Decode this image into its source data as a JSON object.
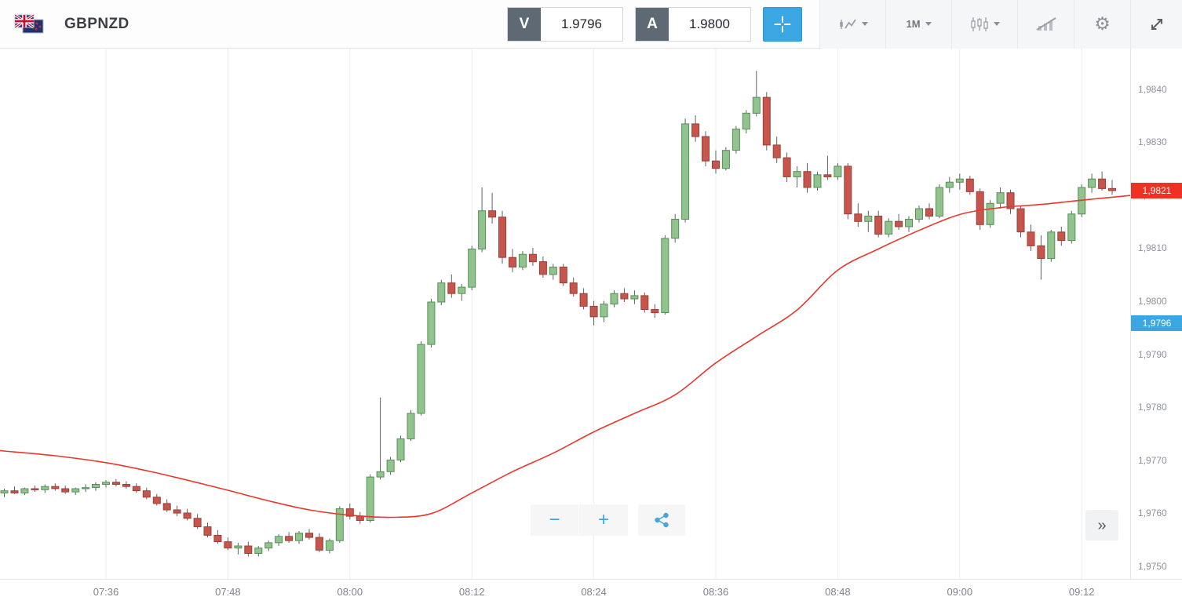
{
  "toolbar": {
    "symbol": "GBPNZD",
    "sell": {
      "label": "V",
      "value": "1.9796"
    },
    "buy": {
      "label": "A",
      "value": "1.9800"
    },
    "timeframe": "1M"
  },
  "icons": {
    "gear": "⚙",
    "scroll_right": "»",
    "zoom_in": "+",
    "zoom_out": "−"
  },
  "axis": {
    "last_price_label": "1,9821",
    "bid_price_label": "1,9796",
    "price_ticks": [
      {
        "v": 1.984,
        "label": "1,9840"
      },
      {
        "v": 1.983,
        "label": "1,9830"
      },
      {
        "v": 1.982,
        "label": "1,9820"
      },
      {
        "v": 1.981,
        "label": "1,9810"
      },
      {
        "v": 1.98,
        "label": "1,9800"
      },
      {
        "v": 1.979,
        "label": "1,9790"
      },
      {
        "v": 1.978,
        "label": "1,9780"
      },
      {
        "v": 1.977,
        "label": "1,9770"
      },
      {
        "v": 1.976,
        "label": "1,9760"
      },
      {
        "v": 1.975,
        "label": "1,9750"
      }
    ],
    "time_labels": [
      {
        "label": "07:36",
        "t": 10
      },
      {
        "label": "07:48",
        "t": 22
      },
      {
        "label": "08:00",
        "t": 34
      },
      {
        "label": "08:12",
        "t": 46
      },
      {
        "label": "08:24",
        "t": 58
      },
      {
        "label": "08:36",
        "t": 70
      },
      {
        "label": "08:48",
        "t": 82
      },
      {
        "label": "09:00",
        "t": 94
      },
      {
        "label": "09:12",
        "t": 106
      }
    ]
  },
  "colors": {
    "accent_blue": "#3aa7e3",
    "up_fill": "#92c28e",
    "up_stroke": "#559055",
    "down_fill": "#c4564e",
    "down_stroke": "#a03d35",
    "wick": "#5c6066",
    "ma_line": "#e8372c",
    "gridline": "#ebedee",
    "last_price_badge": "#ee3124",
    "bid_badge": "#3aa7e3"
  },
  "chart_data": {
    "type": "candlestick",
    "title": "GBPNZD 1M",
    "symbol": "GBPNZD",
    "timeframe": "1M",
    "start_time": "07:26",
    "interval_minutes": 1,
    "ylim": [
      1.975,
      1.9845
    ],
    "last_price": 1.9821,
    "bid": 1.9796,
    "ask": 1.98,
    "candles": [
      [
        1.9764,
        1.97648,
        1.97632,
        1.97644
      ],
      [
        1.97644,
        1.97652,
        1.97638,
        1.9764
      ],
      [
        1.9764,
        1.9765,
        1.97636,
        1.97648
      ],
      [
        1.97648,
        1.97654,
        1.97642,
        1.97646
      ],
      [
        1.97646,
        1.97656,
        1.9764,
        1.97652
      ],
      [
        1.97652,
        1.97658,
        1.97644,
        1.97648
      ],
      [
        1.97648,
        1.97654,
        1.97638,
        1.97642
      ],
      [
        1.97642,
        1.9765,
        1.97636,
        1.97648
      ],
      [
        1.97648,
        1.97656,
        1.97642,
        1.9765
      ],
      [
        1.9765,
        1.9766,
        1.97644,
        1.97656
      ],
      [
        1.97656,
        1.97664,
        1.9765,
        1.9766
      ],
      [
        1.9766,
        1.97666,
        1.97652,
        1.97656
      ],
      [
        1.97656,
        1.97662,
        1.97648,
        1.97652
      ],
      [
        1.97652,
        1.97658,
        1.9764,
        1.97644
      ],
      [
        1.97644,
        1.9765,
        1.97628,
        1.97632
      ],
      [
        1.97632,
        1.97638,
        1.97616,
        1.9762
      ],
      [
        1.9762,
        1.97628,
        1.97604,
        1.97608
      ],
      [
        1.97608,
        1.97616,
        1.97596,
        1.97602
      ],
      [
        1.97602,
        1.9761,
        1.97588,
        1.97592
      ],
      [
        1.97592,
        1.976,
        1.97572,
        1.97576
      ],
      [
        1.97576,
        1.97584,
        1.97556,
        1.9756
      ],
      [
        1.9756,
        1.9757,
        1.97544,
        1.97548
      ],
      [
        1.97548,
        1.97556,
        1.97532,
        1.97536
      ],
      [
        1.97536,
        1.97546,
        1.97524,
        1.9754
      ],
      [
        1.9754,
        1.97548,
        1.9752,
        1.97526
      ],
      [
        1.97526,
        1.9754,
        1.9752,
        1.97536
      ],
      [
        1.97536,
        1.9755,
        1.9753,
        1.97546
      ],
      [
        1.97546,
        1.97562,
        1.9754,
        1.97558
      ],
      [
        1.97558,
        1.97566,
        1.97546,
        1.9755
      ],
      [
        1.9755,
        1.97568,
        1.97544,
        1.97564
      ],
      [
        1.97564,
        1.97572,
        1.97552,
        1.97556
      ],
      [
        1.97556,
        1.97564,
        1.97528,
        1.97532
      ],
      [
        1.97532,
        1.97554,
        1.97526,
        1.9755
      ],
      [
        1.9755,
        1.97615,
        1.97546,
        1.9761
      ],
      [
        1.9761,
        1.9762,
        1.9759,
        1.97596
      ],
      [
        1.97596,
        1.97604,
        1.97582,
        1.97588
      ],
      [
        1.97588,
        1.97675,
        1.97584,
        1.9767
      ],
      [
        1.9767,
        1.9782,
        1.97665,
        1.9768
      ],
      [
        1.9768,
        1.97708,
        1.97674,
        1.97702
      ],
      [
        1.97702,
        1.97748,
        1.97698,
        1.97742
      ],
      [
        1.97742,
        1.97796,
        1.97738,
        1.9779
      ],
      [
        1.9779,
        1.97926,
        1.97786,
        1.9792
      ],
      [
        1.9792,
        1.98006,
        1.97914,
        1.98
      ],
      [
        1.98,
        1.98042,
        1.97994,
        1.98036
      ],
      [
        1.98036,
        1.98052,
        1.98008,
        1.98016
      ],
      [
        1.98016,
        1.98034,
        1.98002,
        1.98028
      ],
      [
        1.98028,
        1.98106,
        1.98022,
        1.981
      ],
      [
        1.981,
        1.98216,
        1.98094,
        1.98172
      ],
      [
        1.98172,
        1.98206,
        1.98148,
        1.9816
      ],
      [
        1.9816,
        1.98172,
        1.98072,
        1.98084
      ],
      [
        1.98084,
        1.981,
        1.98056,
        1.98066
      ],
      [
        1.98066,
        1.98096,
        1.9806,
        1.9809
      ],
      [
        1.9809,
        1.98102,
        1.98068,
        1.98076
      ],
      [
        1.98076,
        1.98086,
        1.98046,
        1.98052
      ],
      [
        1.98052,
        1.98072,
        1.98042,
        1.98066
      ],
      [
        1.98066,
        1.98072,
        1.9803,
        1.98036
      ],
      [
        1.98036,
        1.98046,
        1.9801,
        1.98016
      ],
      [
        1.98016,
        1.98026,
        1.97986,
        1.97992
      ],
      [
        1.97992,
        1.98002,
        1.97956,
        1.97972
      ],
      [
        1.97972,
        1.98002,
        1.97962,
        1.97996
      ],
      [
        1.97996,
        1.98022,
        1.9799,
        1.98016
      ],
      [
        1.98016,
        1.98026,
        1.98,
        1.98006
      ],
      [
        1.98006,
        1.98022,
        1.97996,
        1.98012
      ],
      [
        1.98012,
        1.98018,
        1.9798,
        1.97986
      ],
      [
        1.97986,
        1.97996,
        1.9797,
        1.9798
      ],
      [
        1.9798,
        1.98126,
        1.97976,
        1.9812
      ],
      [
        1.9812,
        1.98166,
        1.98112,
        1.98156
      ],
      [
        1.98156,
        1.98346,
        1.9815,
        1.98336
      ],
      [
        1.98336,
        1.98352,
        1.98302,
        1.98312
      ],
      [
        1.98312,
        1.98322,
        1.98256,
        1.98266
      ],
      [
        1.98266,
        1.98286,
        1.98242,
        1.98252
      ],
      [
        1.98252,
        1.98292,
        1.98248,
        1.98286
      ],
      [
        1.98286,
        1.98332,
        1.9828,
        1.98326
      ],
      [
        1.98326,
        1.98362,
        1.98318,
        1.98356
      ],
      [
        1.98356,
        1.98436,
        1.9835,
        1.98386
      ],
      [
        1.98386,
        1.98396,
        1.98286,
        1.98296
      ],
      [
        1.98296,
        1.98312,
        1.98262,
        1.98272
      ],
      [
        1.98272,
        1.98282,
        1.98226,
        1.98236
      ],
      [
        1.98236,
        1.98256,
        1.98216,
        1.98246
      ],
      [
        1.98246,
        1.98262,
        1.98206,
        1.98216
      ],
      [
        1.98216,
        1.98246,
        1.9821,
        1.9824
      ],
      [
        1.9824,
        1.98276,
        1.9823,
        1.98236
      ],
      [
        1.98236,
        1.98262,
        1.9823,
        1.98256
      ],
      [
        1.98256,
        1.98262,
        1.98156,
        1.98166
      ],
      [
        1.98166,
        1.98186,
        1.98142,
        1.98152
      ],
      [
        1.98152,
        1.98172,
        1.98132,
        1.98162
      ],
      [
        1.98162,
        1.98172,
        1.98122,
        1.98128
      ],
      [
        1.98128,
        1.98158,
        1.98122,
        1.98152
      ],
      [
        1.98152,
        1.98166,
        1.98136,
        1.98142
      ],
      [
        1.98142,
        1.98162,
        1.98132,
        1.98156
      ],
      [
        1.98156,
        1.98182,
        1.9815,
        1.98176
      ],
      [
        1.98176,
        1.98186,
        1.98156,
        1.98162
      ],
      [
        1.98162,
        1.98222,
        1.98158,
        1.98216
      ],
      [
        1.98216,
        1.98236,
        1.98206,
        1.98226
      ],
      [
        1.98226,
        1.98242,
        1.98212,
        1.98232
      ],
      [
        1.98232,
        1.98238,
        1.98202,
        1.98208
      ],
      [
        1.98208,
        1.98214,
        1.98136,
        1.98146
      ],
      [
        1.98146,
        1.98192,
        1.9814,
        1.98186
      ],
      [
        1.98186,
        1.98216,
        1.98176,
        1.98206
      ],
      [
        1.98206,
        1.98212,
        1.98166,
        1.98176
      ],
      [
        1.98176,
        1.98182,
        1.98122,
        1.98132
      ],
      [
        1.98132,
        1.98146,
        1.98096,
        1.98106
      ],
      [
        1.98106,
        1.98126,
        1.98042,
        1.98082
      ],
      [
        1.98082,
        1.98136,
        1.98076,
        1.98132
      ],
      [
        1.98132,
        1.98142,
        1.98106,
        1.98116
      ],
      [
        1.98116,
        1.98172,
        1.9811,
        1.98166
      ],
      [
        1.98166,
        1.98222,
        1.9816,
        1.98216
      ],
      [
        1.98216,
        1.98242,
        1.98206,
        1.98232
      ],
      [
        1.98232,
        1.98246,
        1.9821,
        1.98214
      ],
      [
        1.98214,
        1.9823,
        1.98202,
        1.9821
      ]
    ],
    "ma": {
      "name": "moving-average",
      "points": [
        [
          -1,
          1.97721
        ],
        [
          0,
          1.97719
        ],
        [
          5,
          1.9771
        ],
        [
          10,
          1.97697
        ],
        [
          14,
          1.97682
        ],
        [
          18,
          1.97664
        ],
        [
          22,
          1.97645
        ],
        [
          26,
          1.97625
        ],
        [
          30,
          1.97608
        ],
        [
          34,
          1.97598
        ],
        [
          38,
          1.97594
        ],
        [
          42,
          1.97601
        ],
        [
          46,
          1.9764
        ],
        [
          50,
          1.9768
        ],
        [
          54,
          1.97715
        ],
        [
          58,
          1.97755
        ],
        [
          62,
          1.9779
        ],
        [
          66,
          1.97825
        ],
        [
          70,
          1.97885
        ],
        [
          74,
          1.97935
        ],
        [
          78,
          1.97985
        ],
        [
          82,
          1.9806
        ],
        [
          86,
          1.981
        ],
        [
          90,
          1.98135
        ],
        [
          94,
          1.98165
        ],
        [
          98,
          1.98178
        ],
        [
          102,
          1.98184
        ],
        [
          106,
          1.98192
        ],
        [
          110.8,
          1.98201
        ]
      ]
    }
  }
}
